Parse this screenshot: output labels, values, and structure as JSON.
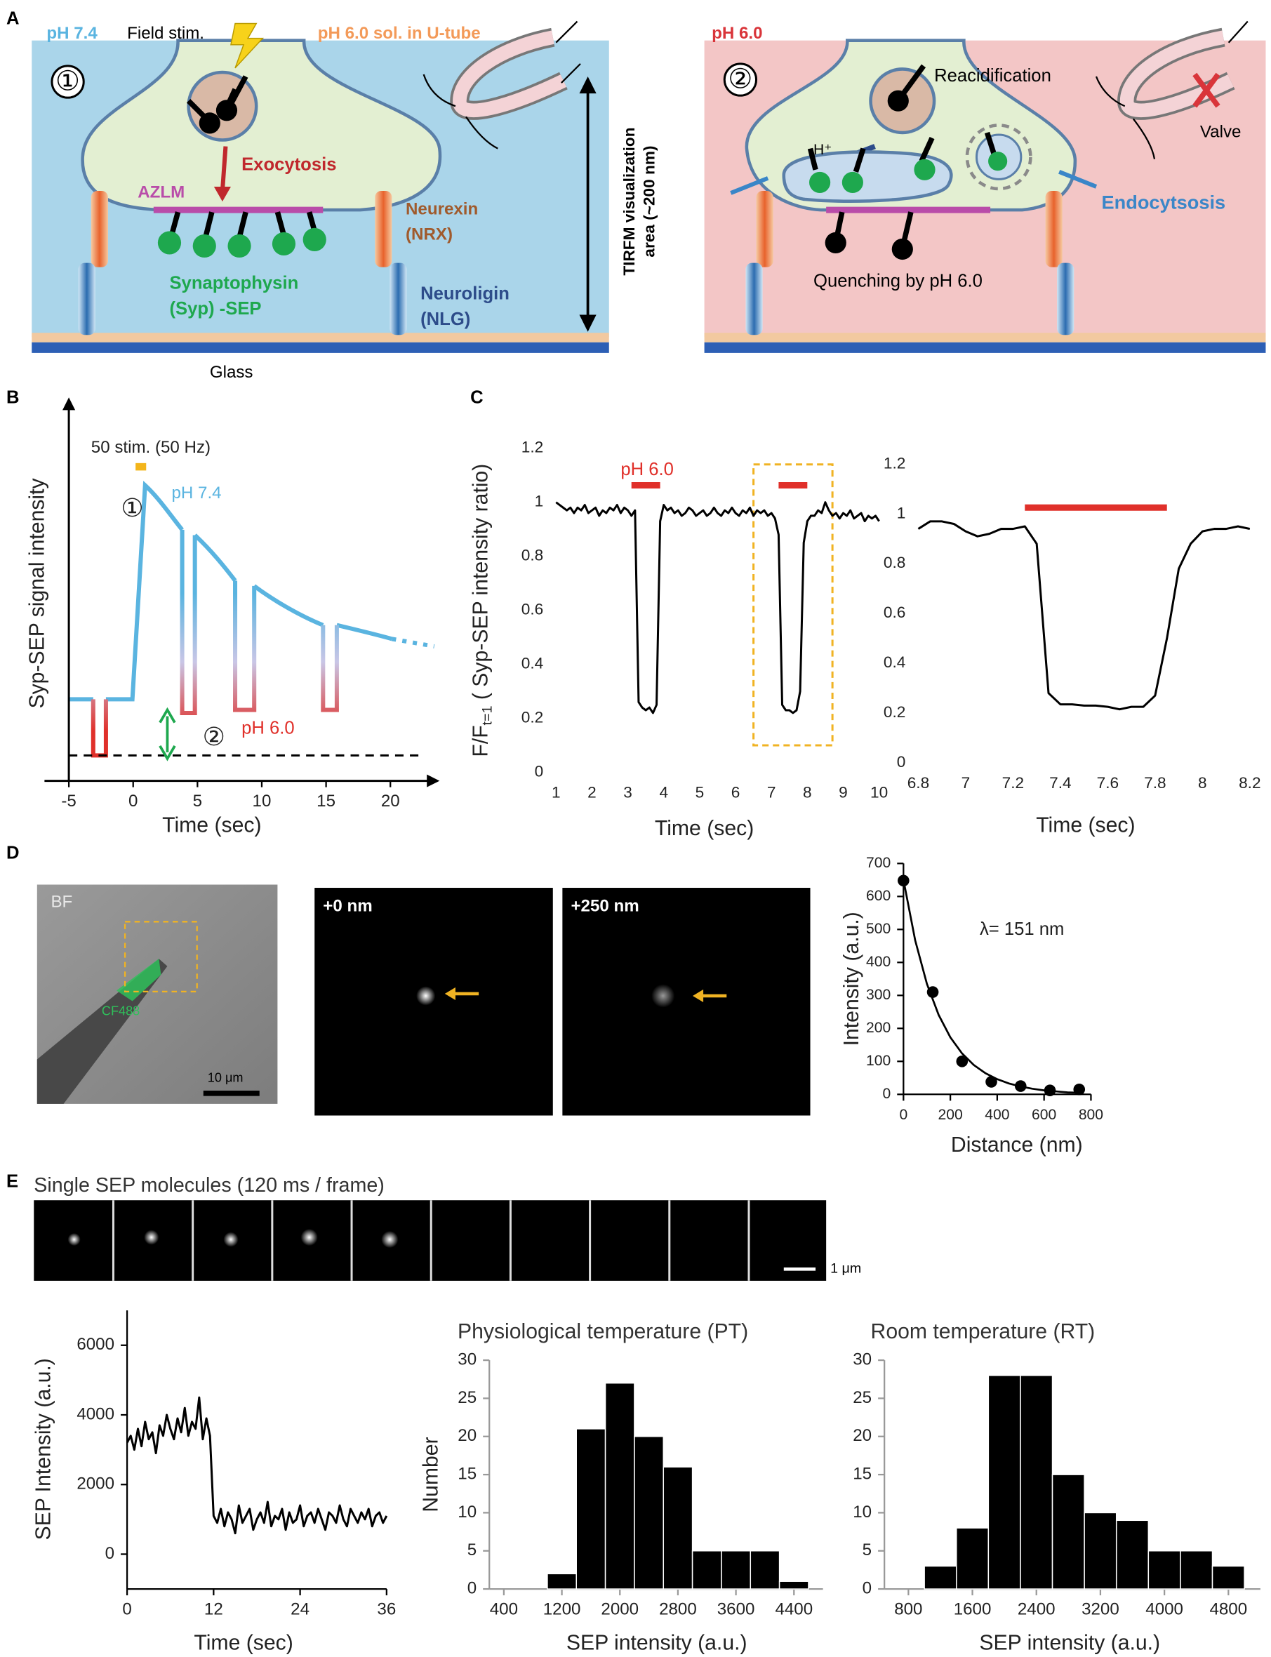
{
  "figure": {
    "panel_labels": [
      "A",
      "B",
      "C",
      "D",
      "E"
    ],
    "diagram_1": {
      "ph": "pH 7.4",
      "stim": "Field stim.",
      "solution": "pH 6.0 sol. in U-tube",
      "step": "①",
      "exo": "Exocytosis",
      "azlm": "AZLM",
      "nrx": [
        "Neurexin",
        "(NRX)"
      ],
      "syp": [
        "Synaptophysin",
        "(Syp) -SEP"
      ],
      "nlg": [
        "Neuroligin",
        "(NLG)"
      ],
      "glass": "Glass",
      "tirfm": [
        "TIRFM visualization",
        "area (~200 nm)"
      ]
    },
    "diagram_2": {
      "ph": "pH 6.0",
      "step": "②",
      "reacid": "Reacidification",
      "h": "H⁺",
      "valve": "Valve",
      "endo": "Endocytsosis",
      "quench": "Quenching by pH 6.0"
    },
    "images_d": {
      "bf": "BF",
      "dye": "CF488",
      "scale": "10 μm",
      "z0": "+0 nm",
      "z250": "+250 nm"
    },
    "images_e": {
      "title": "Single SEP molecules (120 ms / frame)",
      "scale": "1 μm"
    }
  },
  "chart_data": [
    {
      "type": "schematic",
      "xlabel": "Time (sec)",
      "ylabel": "Syp-SEP signal intensity",
      "xlim": [
        -5,
        23
      ],
      "xticks": [
        -5,
        0,
        5,
        10,
        15,
        20
      ],
      "annotations": [
        {
          "text": "50 stim. (50 Hz)"
        },
        {
          "text": "①"
        },
        {
          "text": "pH 7.4",
          "color": "#5ab4e0"
        },
        {
          "text": "pH 6.0",
          "color": "#e0302a"
        },
        {
          "text": "②"
        }
      ]
    },
    {
      "type": "line",
      "xlabel": "Time (sec)",
      "ylabel": {
        "text": "F/F",
        "subscript": "t=1",
        "rest": " ( Syp-SEP intensity ratio)"
      },
      "xlim": [
        1,
        10
      ],
      "xticks": [
        1,
        2,
        3,
        4,
        5,
        6,
        7,
        8,
        9,
        10
      ],
      "ylim": [
        0,
        1.2
      ],
      "yticks": [
        0,
        0.2,
        0.4,
        0.6,
        0.8,
        1,
        1.2
      ],
      "annotations": [
        {
          "text": "pH 6.0",
          "color": "#e0302a"
        }
      ],
      "ph_intervals": [
        [
          3.1,
          3.9
        ],
        [
          7.2,
          8.0
        ]
      ],
      "interval_color": "#e0302a",
      "zoom_box": {
        "x": [
          6.5,
          8.7
        ],
        "y": [
          0.1,
          1.14
        ],
        "color": "#f0b323"
      },
      "x": [
        1,
        1.1,
        1.2,
        1.3,
        1.4,
        1.5,
        1.6,
        1.7,
        1.8,
        1.9,
        2,
        2.1,
        2.2,
        2.3,
        2.4,
        2.5,
        2.6,
        2.7,
        2.8,
        2.9,
        3,
        3.1,
        3.2,
        3.3,
        3.4,
        3.5,
        3.6,
        3.7,
        3.8,
        3.9,
        4,
        4.1,
        4.2,
        4.3,
        4.4,
        4.5,
        4.6,
        4.7,
        4.8,
        4.9,
        5,
        5.1,
        5.2,
        5.3,
        5.4,
        5.5,
        5.6,
        5.7,
        5.8,
        5.9,
        6,
        6.1,
        6.2,
        6.3,
        6.4,
        6.5,
        6.6,
        6.7,
        6.8,
        6.9,
        7,
        7.1,
        7.2,
        7.3,
        7.4,
        7.5,
        7.6,
        7.7,
        7.8,
        7.9,
        8,
        8.1,
        8.2,
        8.3,
        8.4,
        8.5,
        8.6,
        8.7,
        8.8,
        8.9,
        9,
        9.1,
        9.2,
        9.3,
        9.4,
        9.5,
        9.6,
        9.7,
        9.8,
        9.9,
        10
      ],
      "series": [
        {
          "color": "#000000",
          "values": [
            1,
            0.99,
            0.98,
            0.97,
            0.98,
            0.96,
            0.98,
            0.97,
            0.99,
            0.96,
            0.97,
            0.98,
            0.95,
            0.97,
            0.96,
            0.98,
            0.97,
            0.99,
            0.96,
            0.98,
            0.97,
            0.95,
            0.97,
            0.26,
            0.24,
            0.23,
            0.24,
            0.22,
            0.25,
            0.93,
            0.99,
            0.97,
            0.98,
            0.96,
            0.97,
            0.95,
            0.96,
            0.98,
            0.97,
            0.95,
            0.96,
            0.97,
            0.95,
            0.96,
            0.98,
            0.96,
            0.95,
            0.97,
            0.96,
            0.98,
            0.96,
            0.95,
            0.97,
            0.96,
            0.98,
            0.95,
            0.97,
            0.96,
            0.97,
            0.95,
            0.96,
            0.94,
            0.88,
            0.25,
            0.23,
            0.23,
            0.22,
            0.23,
            0.3,
            0.85,
            0.93,
            0.95,
            0.95,
            0.97,
            0.96,
            1,
            0.97,
            0.95,
            0.96,
            0.94,
            0.96,
            0.95,
            0.97,
            0.94,
            0.95,
            0.96,
            0.93,
            0.95,
            0.94,
            0.95,
            0.93
          ]
        }
      ]
    },
    {
      "type": "line",
      "xlabel": "Time (sec)",
      "xlim": [
        6.8,
        8.2
      ],
      "xticks": [
        6.8,
        7,
        7.2,
        7.4,
        7.6,
        7.8,
        8,
        8.2
      ],
      "ylim": [
        0,
        1.2
      ],
      "yticks": [
        0,
        0.2,
        0.4,
        0.6,
        0.8,
        1,
        1.2
      ],
      "ph_intervals": [
        [
          7.25,
          7.85
        ]
      ],
      "interval_color": "#e0302a",
      "x": [
        6.8,
        6.85,
        6.9,
        6.95,
        7,
        7.05,
        7.1,
        7.15,
        7.2,
        7.25,
        7.3,
        7.35,
        7.4,
        7.45,
        7.5,
        7.55,
        7.6,
        7.65,
        7.7,
        7.75,
        7.8,
        7.85,
        7.9,
        7.95,
        8,
        8.05,
        8.1,
        8.15,
        8.2
      ],
      "series": [
        {
          "color": "#000000",
          "values": [
            0.94,
            0.97,
            0.97,
            0.96,
            0.93,
            0.91,
            0.92,
            0.94,
            0.94,
            0.95,
            0.88,
            0.28,
            0.235,
            0.235,
            0.23,
            0.23,
            0.225,
            0.215,
            0.225,
            0.225,
            0.27,
            0.5,
            0.78,
            0.88,
            0.93,
            0.94,
            0.94,
            0.95,
            0.94
          ]
        }
      ]
    },
    {
      "type": "scatter",
      "xlabel": "Distance (nm)",
      "ylabel": "Intensity (a.u.)",
      "xlim": [
        0,
        800
      ],
      "xticks": [
        0,
        200,
        400,
        600,
        800
      ],
      "ylim": [
        0,
        700
      ],
      "yticks": [
        0,
        100,
        200,
        300,
        400,
        500,
        600,
        700
      ],
      "annotations": [
        {
          "text": "λ= 151 nm"
        }
      ],
      "series": [
        {
          "mode": "markers",
          "color": "#000000",
          "x": [
            0,
            125,
            250,
            375,
            500,
            625,
            750
          ],
          "values": [
            648,
            310,
            100,
            38,
            25,
            12,
            15
          ]
        },
        {
          "mode": "line",
          "color": "#000000",
          "x": [
            0,
            50,
            100,
            150,
            200,
            250,
            300,
            350,
            400,
            450,
            500,
            550,
            600,
            650,
            700,
            750
          ],
          "values": [
            650,
            467,
            335,
            241,
            173,
            124,
            89,
            64,
            46,
            33,
            24,
            17,
            12,
            9,
            6,
            5
          ]
        }
      ]
    },
    {
      "type": "line",
      "xlabel": "Time (sec)",
      "ylabel": "SEP Intensity (a.u.)",
      "xlim": [
        0,
        36
      ],
      "xticks": [
        0,
        12,
        24,
        36
      ],
      "ylim": [
        -1000,
        7000
      ],
      "yticks": [
        0,
        2000,
        4000,
        6000
      ],
      "x": [
        0,
        0.5,
        1,
        1.5,
        2,
        2.5,
        3,
        3.5,
        4,
        4.5,
        5,
        5.5,
        6,
        6.5,
        7,
        7.5,
        8,
        8.5,
        9,
        9.5,
        10,
        10.5,
        11,
        11.5,
        12,
        12.5,
        13,
        13.5,
        14,
        14.5,
        15,
        15.5,
        16,
        16.5,
        17,
        17.5,
        18,
        18.5,
        19,
        19.5,
        20,
        20.5,
        21,
        21.5,
        22,
        22.5,
        23,
        23.5,
        24,
        24.5,
        25,
        25.5,
        26,
        26.5,
        27,
        27.5,
        28,
        28.5,
        29,
        29.5,
        30,
        30.5,
        31,
        31.5,
        32,
        32.5,
        33,
        33.5,
        34,
        34.5,
        35,
        35.5,
        36
      ],
      "series": [
        {
          "color": "#000000",
          "values": [
            3200,
            3400,
            3000,
            3600,
            3100,
            3800,
            3300,
            3500,
            2900,
            3700,
            3400,
            4000,
            3600,
            3300,
            3900,
            3500,
            4200,
            3400,
            3800,
            3600,
            4500,
            3300,
            3900,
            3400,
            1100,
            900,
            1300,
            800,
            1200,
            1000,
            600,
            1400,
            900,
            1100,
            1300,
            700,
            1000,
            1200,
            900,
            1500,
            800,
            1100,
            1000,
            1300,
            700,
            1200,
            900,
            1000,
            1400,
            800,
            1100,
            1200,
            900,
            1300,
            1000,
            700,
            1200,
            1100,
            900,
            1400,
            1000,
            800,
            1300,
            1100,
            900,
            1200,
            1000,
            1300,
            800,
            1100,
            1200,
            900,
            1100
          ]
        }
      ]
    },
    {
      "type": "histogram",
      "title": "Physiological temperature (PT)",
      "xlabel": "SEP intensity (a.u.)",
      "ylabel": "Number",
      "color": "#000000",
      "xlim": [
        200,
        4800
      ],
      "xticks": [
        400,
        1200,
        2000,
        2800,
        3600,
        4400
      ],
      "ylim": [
        0,
        30
      ],
      "yticks": [
        0,
        5,
        10,
        15,
        20,
        25,
        30
      ],
      "bins": [
        1000,
        1400,
        1800,
        2200,
        2600,
        3000,
        3400,
        3800,
        4200,
        4600
      ],
      "values": [
        2,
        21,
        27,
        20,
        16,
        5,
        5,
        5,
        1
      ]
    },
    {
      "type": "histogram",
      "title": "Room temperature (RT)",
      "xlabel": "SEP intensity (a.u.)",
      "color": "#000000",
      "xlim": [
        500,
        5200
      ],
      "xticks": [
        800,
        1600,
        2400,
        3200,
        4000,
        4800
      ],
      "ylim": [
        0,
        30
      ],
      "yticks": [
        0,
        5,
        10,
        15,
        20,
        25,
        30
      ],
      "bins": [
        1000,
        1400,
        1800,
        2200,
        2600,
        3000,
        3400,
        3800,
        4200,
        4600,
        5000
      ],
      "values": [
        3,
        8,
        28,
        28,
        15,
        10,
        9,
        5,
        5,
        3
      ]
    }
  ]
}
